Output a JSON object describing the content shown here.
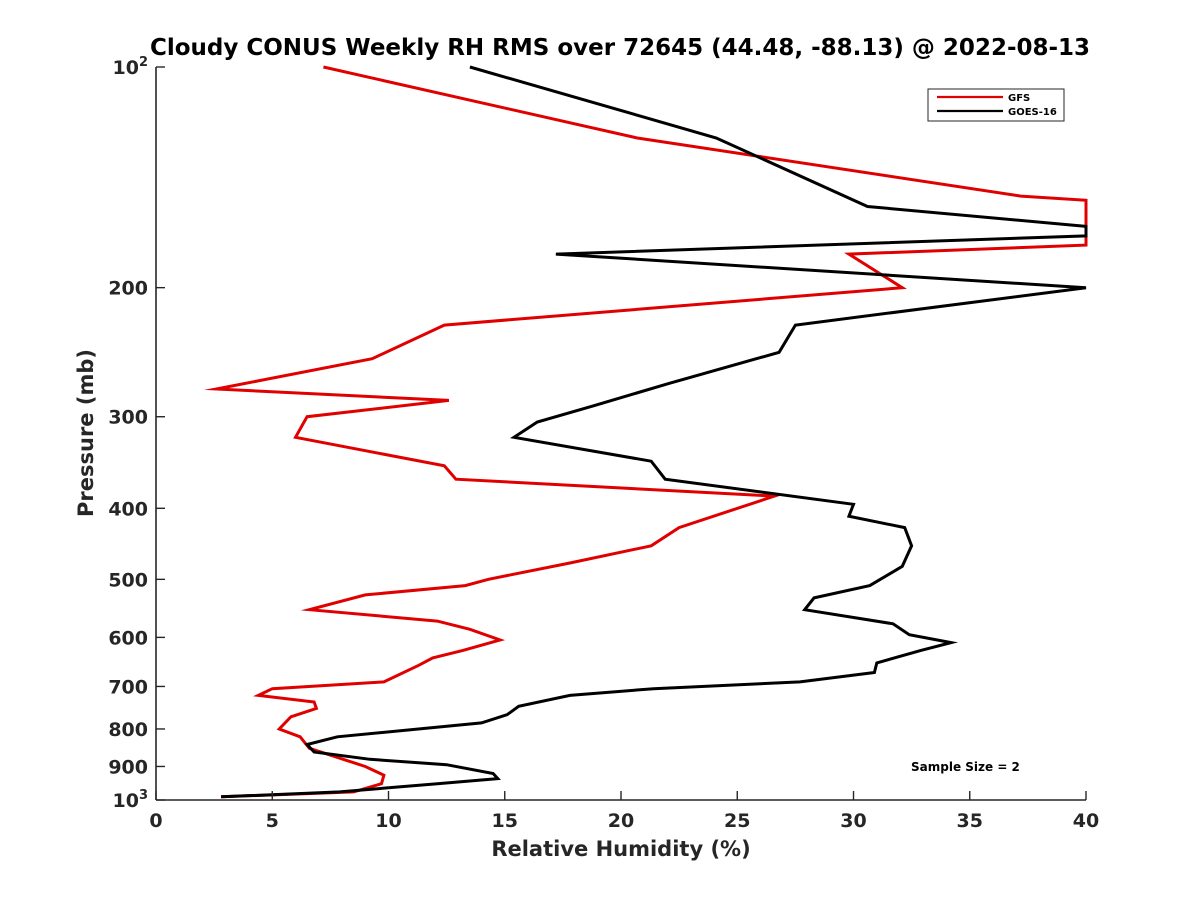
{
  "chart_data": {
    "type": "line",
    "title": "Cloudy CONUS Weekly RH RMS over 72645 (44.48, -88.13) @ 2022-08-13",
    "xlabel": "Relative Humidity (%)",
    "ylabel": "Pressure (mb)",
    "xlim": [
      0,
      40
    ],
    "ylim": [
      100,
      1000
    ],
    "y_scale": "log",
    "y_reversed": true,
    "grid": false,
    "legend_position": "top-right",
    "x_ticks": [
      "0",
      "5",
      "10",
      "15",
      "20",
      "25",
      "30",
      "35",
      "40"
    ],
    "y_ticks": [
      {
        "value": 100,
        "base": "10",
        "exp": "2"
      },
      {
        "value": 200,
        "label": "200"
      },
      {
        "value": 300,
        "label": "300"
      },
      {
        "value": 400,
        "label": "400"
      },
      {
        "value": 500,
        "label": "500"
      },
      {
        "value": 600,
        "label": "600"
      },
      {
        "value": 700,
        "label": "700"
      },
      {
        "value": 800,
        "label": "800"
      },
      {
        "value": 900,
        "label": "900"
      },
      {
        "value": 1000,
        "base": "10",
        "exp": "3"
      }
    ],
    "annotation": "Sample Size = 2",
    "series": [
      {
        "name": "GFS",
        "color": "#e00000",
        "points": [
          [
            7.2,
            100
          ],
          [
            20.7,
            125
          ],
          [
            37.2,
            150
          ],
          [
            40.0,
            152
          ],
          [
            40.0,
            175
          ],
          [
            29.8,
            180
          ],
          [
            32.1,
            200
          ],
          [
            12.4,
            225
          ],
          [
            9.3,
            250
          ],
          [
            2.6,
            275
          ],
          [
            12.6,
            285
          ],
          [
            6.5,
            300
          ],
          [
            6.0,
            320
          ],
          [
            12.4,
            350
          ],
          [
            12.9,
            365
          ],
          [
            26.6,
            385
          ],
          [
            22.5,
            425
          ],
          [
            21.3,
            450
          ],
          [
            17.8,
            475
          ],
          [
            14.3,
            500
          ],
          [
            13.3,
            510
          ],
          [
            9.0,
            525
          ],
          [
            6.6,
            550
          ],
          [
            12.1,
            570
          ],
          [
            13.5,
            585
          ],
          [
            14.8,
            605
          ],
          [
            13.2,
            625
          ],
          [
            11.9,
            640
          ],
          [
            11.3,
            655
          ],
          [
            9.8,
            690
          ],
          [
            5.0,
            705
          ],
          [
            4.4,
            720
          ],
          [
            6.8,
            735
          ],
          [
            6.9,
            750
          ],
          [
            5.8,
            770
          ],
          [
            5.3,
            800
          ],
          [
            6.2,
            820
          ],
          [
            6.6,
            850
          ],
          [
            9.0,
            900
          ],
          [
            9.8,
            925
          ],
          [
            9.7,
            950
          ],
          [
            8.5,
            975
          ],
          [
            2.8,
            990
          ]
        ]
      },
      {
        "name": "GOES-16",
        "color": "#000000",
        "points": [
          [
            13.5,
            100
          ],
          [
            24.1,
            125
          ],
          [
            30.6,
            155
          ],
          [
            40.0,
            165
          ],
          [
            40.0,
            170
          ],
          [
            17.2,
            180
          ],
          [
            40.0,
            200
          ],
          [
            27.5,
            225
          ],
          [
            26.8,
            245
          ],
          [
            22.1,
            270
          ],
          [
            18.8,
            290
          ],
          [
            16.4,
            305
          ],
          [
            15.4,
            320
          ],
          [
            21.3,
            345
          ],
          [
            21.9,
            365
          ],
          [
            30.0,
            395
          ],
          [
            29.8,
            410
          ],
          [
            32.2,
            425
          ],
          [
            32.5,
            450
          ],
          [
            32.1,
            480
          ],
          [
            30.7,
            510
          ],
          [
            28.3,
            530
          ],
          [
            27.9,
            550
          ],
          [
            31.7,
            575
          ],
          [
            32.4,
            595
          ],
          [
            34.2,
            610
          ],
          [
            32.9,
            625
          ],
          [
            31.0,
            650
          ],
          [
            30.9,
            670
          ],
          [
            27.7,
            690
          ],
          [
            21.4,
            705
          ],
          [
            17.8,
            720
          ],
          [
            15.6,
            745
          ],
          [
            15.1,
            765
          ],
          [
            14.0,
            785
          ],
          [
            7.8,
            820
          ],
          [
            6.5,
            840
          ],
          [
            6.8,
            860
          ],
          [
            9.2,
            880
          ],
          [
            12.5,
            895
          ],
          [
            14.5,
            920
          ],
          [
            14.7,
            935
          ],
          [
            12.1,
            950
          ],
          [
            7.9,
            975
          ],
          [
            2.8,
            990
          ]
        ]
      }
    ]
  }
}
